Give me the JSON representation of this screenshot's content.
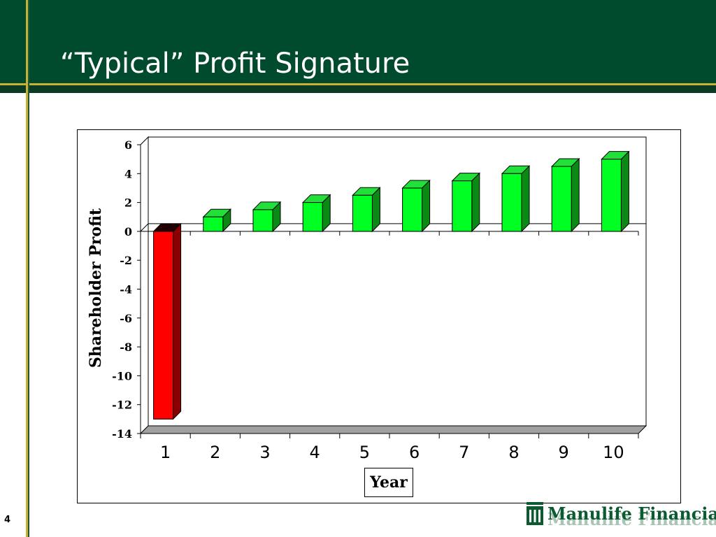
{
  "slide": {
    "title": "“Typical” Profit Signature",
    "page_number": "4"
  },
  "brand": {
    "name": "Manulife Financial"
  },
  "colors": {
    "header_green": "#004B2E",
    "gold_accent": "#C9B036",
    "positive_bar": "#00FF22",
    "negative_bar": "#FF0000"
  },
  "chart_data": {
    "type": "bar",
    "categories": [
      "1",
      "2",
      "3",
      "4",
      "5",
      "6",
      "7",
      "8",
      "9",
      "10"
    ],
    "values": [
      -13,
      1,
      1.5,
      2,
      2.5,
      3,
      3.5,
      4,
      4.5,
      5
    ],
    "title": "",
    "xlabel": "Year",
    "ylabel": "Shareholder Profit",
    "ylim": [
      -14,
      6
    ],
    "yticks": [
      "6",
      "4",
      "2",
      "0",
      "-2",
      "-4",
      "-6",
      "-8",
      "-10",
      "-12",
      "-14"
    ],
    "grid": false,
    "legend": "none",
    "style": "3d"
  }
}
